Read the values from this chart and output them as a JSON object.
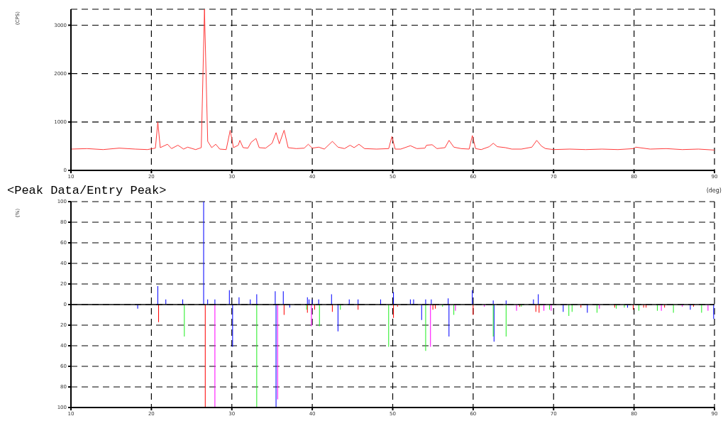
{
  "chart_data": [
    {
      "type": "line",
      "ylabel": "(CPS)",
      "xlabel": "(deg)",
      "xlim": [
        10,
        90
      ],
      "xticks": [
        10,
        20,
        30,
        40,
        50,
        60,
        70,
        80,
        90
      ],
      "ylim": [
        0,
        3330
      ],
      "yticks": [
        0,
        1000,
        2000,
        3000
      ],
      "grid": true,
      "marker": "none",
      "line_style": "solid",
      "series": [
        {
          "color": "#ff3b3b",
          "x": [
            10,
            12,
            14,
            16,
            18,
            19.5,
            20.5,
            20.8,
            21.1,
            22,
            22.5,
            23.3,
            24,
            24.5,
            25.5,
            26.2,
            26.6,
            27,
            27.5,
            28,
            28.5,
            29.3,
            29.8,
            30.2,
            30.8,
            31,
            31.4,
            32,
            32.4,
            33,
            33.4,
            34.2,
            35,
            35.5,
            35.9,
            36.5,
            37,
            38,
            39,
            39.5,
            40,
            40.8,
            41.5,
            42.5,
            43.2,
            44,
            44.7,
            45.2,
            45.8,
            46.5,
            48,
            49.5,
            49.9,
            50.3,
            51,
            52.2,
            53,
            54,
            54.2,
            54.9,
            55.5,
            56.5,
            57,
            57.6,
            58.5,
            59.5,
            59.9,
            60.3,
            61,
            62,
            62.5,
            63,
            64,
            64.8,
            66,
            67.3,
            67.9,
            68.5,
            69,
            70,
            72,
            74,
            76,
            78,
            80,
            80.2,
            82,
            84,
            86,
            88,
            90
          ],
          "values": [
            440,
            450,
            430,
            460,
            440,
            430,
            460,
            1000,
            470,
            540,
            450,
            520,
            440,
            480,
            430,
            470,
            3330,
            600,
            470,
            540,
            440,
            430,
            830,
            470,
            520,
            620,
            470,
            460,
            580,
            660,
            470,
            460,
            560,
            780,
            550,
            830,
            470,
            450,
            460,
            540,
            460,
            480,
            440,
            600,
            480,
            450,
            520,
            470,
            540,
            450,
            440,
            450,
            700,
            440,
            440,
            510,
            450,
            460,
            520,
            530,
            450,
            470,
            620,
            480,
            450,
            440,
            720,
            450,
            430,
            490,
            560,
            490,
            470,
            440,
            440,
            480,
            620,
            500,
            450,
            430,
            440,
            430,
            440,
            430,
            450,
            480,
            440,
            450,
            430,
            440,
            420
          ]
        }
      ]
    },
    {
      "type": "bar",
      "title": "<Peak Data/Entry Peak>",
      "ylabel": "(%)",
      "xlim": [
        10,
        90
      ],
      "xticks": [
        10,
        20,
        30,
        40,
        50,
        60,
        70,
        80,
        90
      ],
      "ylim": [
        -100,
        100
      ],
      "yticks": [
        100,
        80,
        60,
        40,
        20,
        0,
        {
          "value": -20,
          "label": "20"
        },
        {
          "value": -40,
          "label": "40"
        },
        {
          "value": -60,
          "label": "60"
        },
        {
          "value": -80,
          "label": "80"
        },
        {
          "value": -100,
          "label": "100"
        }
      ],
      "grid": true,
      "ref_lines": [
        {
          "axis": "y",
          "value": 0,
          "color": "#000000",
          "line_style": "solid"
        }
      ],
      "series": [
        {
          "color": "#0000ff",
          "x": [
            18.3,
            20.8,
            21.8,
            23.9,
            26.5,
            27.0,
            27.9,
            29.7,
            30.1,
            30.9,
            32.3,
            33.1,
            35.4,
            35.5,
            36.4,
            37.2,
            39.4,
            39.6,
            40.0,
            40.8,
            42.4,
            43.2,
            44.6,
            45.7,
            48.5,
            50.1,
            52.2,
            52.6,
            53.6,
            54.1,
            54.8,
            56.9,
            57.0,
            59.9,
            62.5,
            62.6,
            64.1,
            67.5,
            68.1,
            71.2,
            74.2,
            79.2,
            87.0,
            89.9
          ],
          "values": [
            -4,
            18,
            5,
            5,
            100,
            5,
            5,
            14,
            -41,
            7,
            5,
            10,
            13,
            -100,
            13,
            -3,
            7,
            5,
            5,
            5,
            10,
            -26,
            5,
            5,
            5,
            12,
            5,
            5,
            -15,
            5,
            5,
            6,
            -31,
            14,
            4,
            -36,
            4,
            5,
            10,
            -7,
            -8,
            -3,
            -5,
            -14
          ]
        },
        {
          "color": "#ff0000",
          "x": [
            20.9,
            26.7,
            36.5,
            39.4,
            40.3,
            42.5,
            45.7,
            50.1,
            50.6,
            55.0,
            55.3,
            60.0,
            65.8,
            67.8,
            68.2,
            73.4,
            77.6,
            79.9,
            81.2,
            81.5,
            83.8,
            87.4
          ],
          "values": [
            -17,
            -100,
            -10,
            -8,
            -5,
            -7,
            -5,
            -13,
            -2,
            -5,
            -4,
            -10,
            -2,
            -7,
            -8,
            -3,
            -3,
            -5,
            -3,
            -3,
            -3,
            -2
          ]
        },
        {
          "color": "#22ee22",
          "x": [
            24.1,
            33.1,
            39.3,
            40.9,
            43.5,
            49.5,
            54.1,
            56.2,
            57.6,
            62.5,
            64.1,
            66.0,
            69.5,
            71.9,
            72.3,
            75.4,
            77.8,
            78.8,
            80.6,
            82.9,
            84.9,
            88.4
          ],
          "values": [
            -31,
            -100,
            -5,
            -21,
            -5,
            -41,
            -45,
            -2,
            -10,
            -31,
            -31,
            -2,
            -5,
            -11,
            -7,
            -8,
            -4,
            -3,
            -6,
            -6,
            -8,
            -8
          ]
        },
        {
          "color": "#ff00ff",
          "x": [
            27.9,
            35.7,
            39.9,
            54.7,
            57.8,
            61.4,
            65.4,
            68.8,
            69.7,
            75.7,
            83.4,
            86.0,
            89.2
          ],
          "values": [
            -100,
            -92,
            -21,
            -41,
            -6,
            -2,
            -6,
            -6,
            -6,
            -4,
            -6,
            -2,
            -6
          ]
        }
      ]
    }
  ]
}
